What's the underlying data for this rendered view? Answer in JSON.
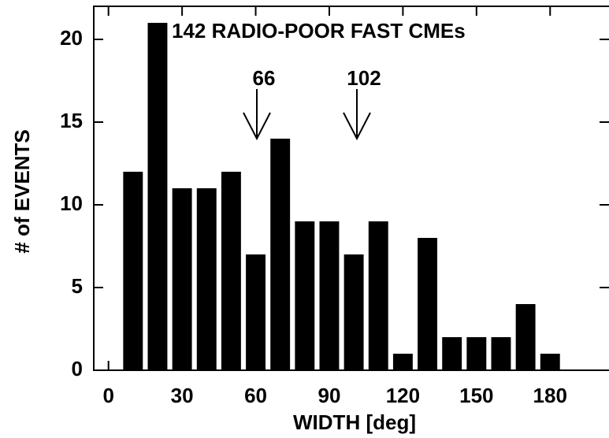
{
  "chart_data": {
    "type": "histogram",
    "title": "142 RADIO-POOR FAST CMEs",
    "x_label": "WIDTH [deg]",
    "y_label": "# of EVENTS",
    "annotations": [
      "66",
      "102"
    ],
    "bins": [
      5,
      15,
      25,
      35,
      45,
      55,
      65,
      75,
      85,
      95,
      105,
      115,
      125,
      135,
      145,
      155,
      165,
      175,
      185
    ],
    "values": [
      12,
      21,
      11,
      11,
      12,
      7,
      14,
      9,
      9,
      7,
      9,
      1,
      8,
      2,
      2,
      2,
      4,
      1
    ],
    "color": "#000000",
    "xlim": [
      -6,
      204
    ],
    "ylim": [
      0,
      22
    ],
    "xticks": [
      0,
      30,
      60,
      90,
      120,
      150,
      180
    ],
    "yticks": [
      0,
      5,
      10,
      15,
      20
    ]
  }
}
